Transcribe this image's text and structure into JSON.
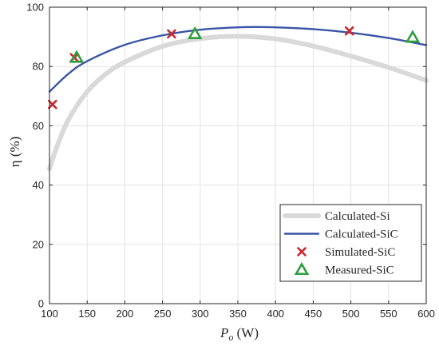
{
  "chart_data": {
    "type": "line",
    "title": "",
    "xlabel_main": "P",
    "xlabel_sub": "o",
    "xlabel_unit": " (W)",
    "ylabel": "η (%)",
    "xlim": [
      100,
      600
    ],
    "ylim": [
      0,
      100
    ],
    "xticks": [
      100,
      150,
      200,
      250,
      300,
      350,
      400,
      450,
      500,
      550,
      600
    ],
    "yticks": [
      0,
      20,
      40,
      60,
      80,
      100
    ],
    "grid": true,
    "legend_position": "bottom-right",
    "series": [
      {
        "name": "Calculated-Si",
        "kind": "line",
        "color": "#d9d9d9",
        "x": [
          100,
          110,
          125,
          150,
          175,
          200,
          250,
          300,
          350,
          400,
          450,
          500,
          550,
          600
        ],
        "y": [
          45.5,
          53,
          62,
          71.5,
          77.5,
          81.5,
          86.8,
          89.4,
          90.2,
          89.3,
          86.9,
          83.5,
          79.7,
          75.3
        ]
      },
      {
        "name": "Calculated-SiC",
        "kind": "line",
        "color": "#3a55a5",
        "x": [
          100,
          125,
          150,
          200,
          250,
          300,
          350,
          375,
          400,
          450,
          500,
          550,
          600
        ],
        "y": [
          71.5,
          77.5,
          81.8,
          87.3,
          90.5,
          92.4,
          93.2,
          93.3,
          93.2,
          92.6,
          91.4,
          89.6,
          87.2
        ]
      },
      {
        "name": "Simulated-SiC",
        "kind": "marker-x",
        "color": "#c8282e",
        "x": [
          104,
          133,
          262,
          498
        ],
        "y": [
          67.2,
          83,
          91,
          92
        ]
      },
      {
        "name": "Measured-SiC",
        "kind": "marker-triangle",
        "color": "#2e9e3e",
        "x": [
          136,
          293,
          582
        ],
        "y": [
          83,
          91,
          89.8
        ]
      }
    ]
  }
}
